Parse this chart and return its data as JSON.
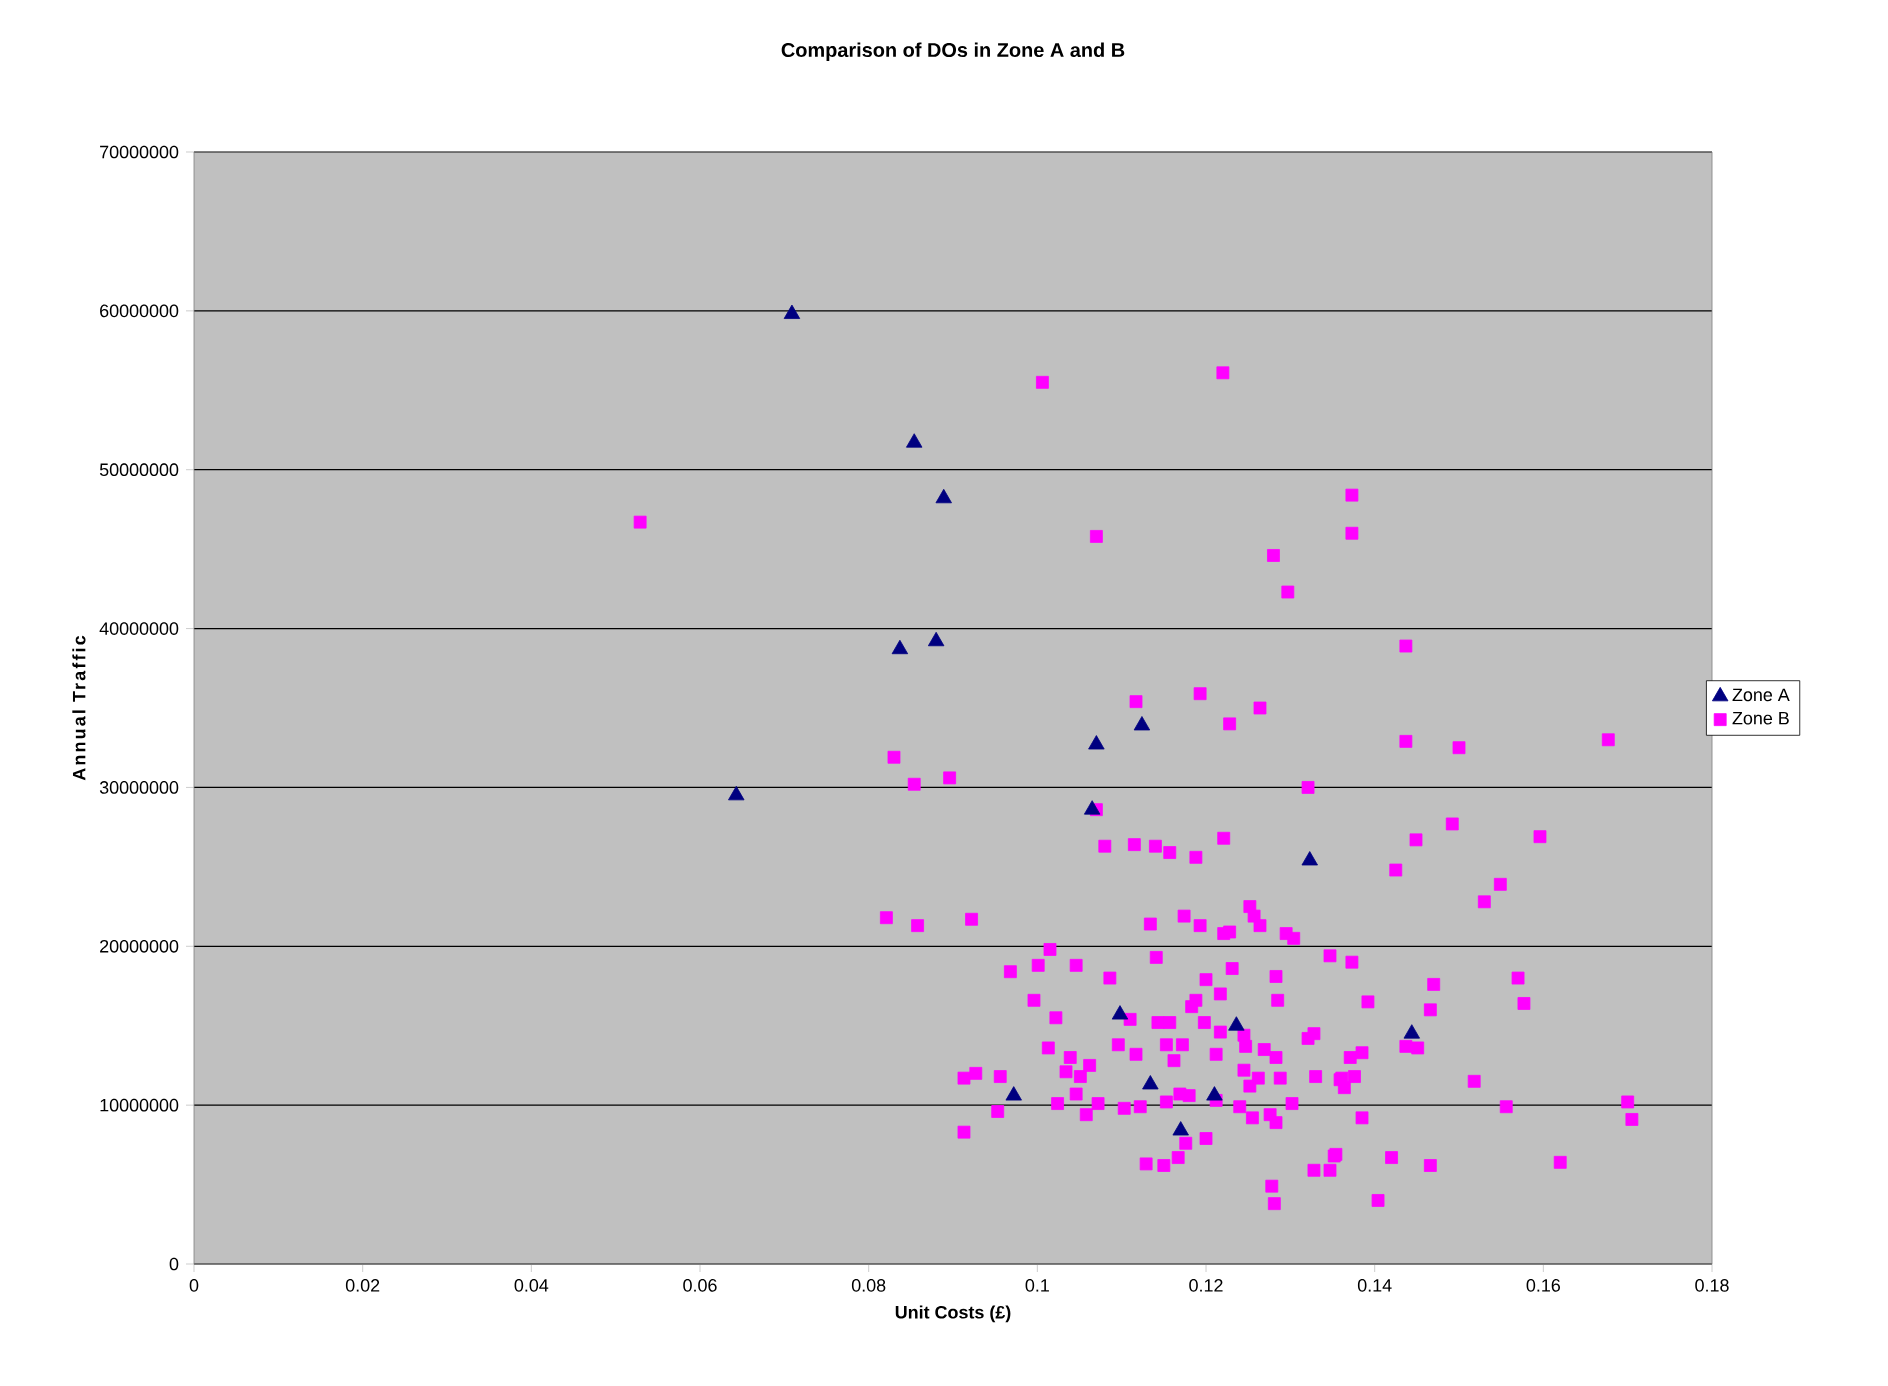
{
  "chart_data": {
    "type": "scatter",
    "title": "Comparison of DOs in Zone A and B",
    "xlabel": "Unit Costs (£)",
    "ylabel": "Annual Traffic",
    "xlim": [
      0,
      0.18
    ],
    "xticks": [
      0,
      0.02,
      0.04,
      0.06,
      0.08,
      0.1,
      0.12,
      0.14,
      0.16,
      0.18
    ],
    "ylim": [
      0,
      70000000
    ],
    "yticks": [
      0,
      10000000,
      20000000,
      30000000,
      40000000,
      50000000,
      60000000,
      70000000
    ],
    "grid": "y",
    "legend": "right",
    "series": [
      {
        "name": "Zone A",
        "color": "#000080",
        "marker": "triangle",
        "x": [
          0.0709,
          0.0854,
          0.0889,
          0.0837,
          0.088,
          0.0643,
          0.107,
          0.1124,
          0.1065,
          0.1323,
          0.0972,
          0.1098,
          0.1134,
          0.121,
          0.117,
          0.1236,
          0.1444
        ],
        "values": [
          59800000,
          51700000,
          48200000,
          38700000,
          39200000,
          29500000,
          32700000,
          33900000,
          28600000,
          25400000,
          10600000,
          15700000,
          11300000,
          10600000,
          8400000,
          15000000,
          14500000
        ]
      },
      {
        "name": "Zone B",
        "color": "#ff00ff",
        "marker": "square",
        "x": [
          0.0529,
          0.1006,
          0.122,
          0.107,
          0.1373,
          0.1373,
          0.128,
          0.1297,
          0.1437,
          0.1117,
          0.1193,
          0.1228,
          0.1264,
          0.1437,
          0.15,
          0.1677,
          0.1321,
          0.083,
          0.0854,
          0.0896,
          0.107,
          0.108,
          0.1115,
          0.114,
          0.1157,
          0.1188,
          0.1221,
          0.0821,
          0.0858,
          0.0922,
          0.1134,
          0.1174,
          0.1193,
          0.1221,
          0.1228,
          0.1252,
          0.1257,
          0.1264,
          0.1295,
          0.1304,
          0.1347,
          0.1015,
          0.1001,
          0.0968,
          0.1046,
          0.1086,
          0.1141,
          0.12,
          0.1231,
          0.1283,
          0.0996,
          0.1022,
          0.1188,
          0.1183,
          0.1217,
          0.1285,
          0.1198,
          0.1217,
          0.111,
          0.1143,
          0.1157,
          0.1013,
          0.1096,
          0.1117,
          0.1153,
          0.1172,
          0.1162,
          0.1212,
          0.1245,
          0.1247,
          0.1269,
          0.1283,
          0.1321,
          0.1328,
          0.133,
          0.1245,
          0.1262,
          0.1288,
          0.1252,
          0.1039,
          0.1062,
          0.1034,
          0.1051,
          0.1046,
          0.1072,
          0.1058,
          0.1024,
          0.1103,
          0.1122,
          0.1153,
          0.1169,
          0.118,
          0.1212,
          0.124,
          0.1255,
          0.1276,
          0.1283,
          0.1302,
          0.0913,
          0.0927,
          0.0956,
          0.0953,
          0.0913,
          0.1176,
          0.12,
          0.1167,
          0.1129,
          0.115,
          0.1278,
          0.1281,
          0.1328,
          0.1347,
          0.1354,
          0.1359,
          0.1492,
          0.1449,
          0.1596,
          0.1425,
          0.1549,
          0.153,
          0.1373,
          0.147,
          0.157,
          0.1392,
          0.1466,
          0.1577,
          0.1385,
          0.1371,
          0.1437,
          0.1451,
          0.1361,
          0.1376,
          0.1364,
          0.1385,
          0.1518,
          0.1556,
          0.17,
          0.1705,
          0.1352,
          0.142,
          0.1466,
          0.162,
          0.1404
        ],
        "values": [
          46700000,
          55500000,
          56100000,
          45800000,
          48400000,
          46000000,
          44600000,
          42300000,
          38900000,
          35400000,
          35900000,
          34000000,
          35000000,
          32900000,
          32500000,
          33000000,
          30000000,
          31900000,
          30200000,
          30600000,
          28600000,
          26300000,
          26400000,
          26300000,
          25900000,
          25600000,
          26800000,
          21800000,
          21300000,
          21700000,
          21400000,
          21900000,
          21300000,
          20800000,
          20900000,
          22500000,
          21900000,
          21300000,
          20800000,
          20500000,
          19400000,
          19800000,
          18800000,
          18400000,
          18800000,
          18000000,
          19300000,
          17900000,
          18600000,
          18100000,
          16600000,
          15500000,
          16600000,
          16200000,
          17000000,
          16600000,
          15200000,
          14600000,
          15400000,
          15200000,
          15200000,
          13600000,
          13800000,
          13200000,
          13800000,
          13800000,
          12800000,
          13200000,
          14400000,
          13700000,
          13500000,
          13000000,
          14200000,
          14500000,
          11800000,
          12200000,
          11700000,
          11700000,
          11200000,
          13000000,
          12500000,
          12100000,
          11800000,
          10700000,
          10100000,
          9400000,
          10100000,
          9800000,
          9900000,
          10200000,
          10700000,
          10600000,
          10300000,
          9900000,
          9200000,
          9400000,
          8900000,
          10100000,
          11700000,
          12000000,
          11800000,
          9600000,
          8300000,
          7600000,
          7900000,
          6700000,
          6300000,
          6200000,
          4900000,
          3800000,
          5900000,
          5900000,
          6900000,
          11600000,
          27700000,
          26700000,
          26900000,
          24800000,
          23900000,
          22800000,
          19000000,
          17600000,
          18000000,
          16500000,
          16000000,
          16400000,
          13300000,
          13000000,
          13700000,
          13600000,
          11700000,
          11800000,
          11100000,
          9200000,
          11500000,
          9900000,
          10200000,
          9100000,
          6800000,
          6700000,
          6200000,
          6400000,
          4000000
        ]
      }
    ]
  }
}
